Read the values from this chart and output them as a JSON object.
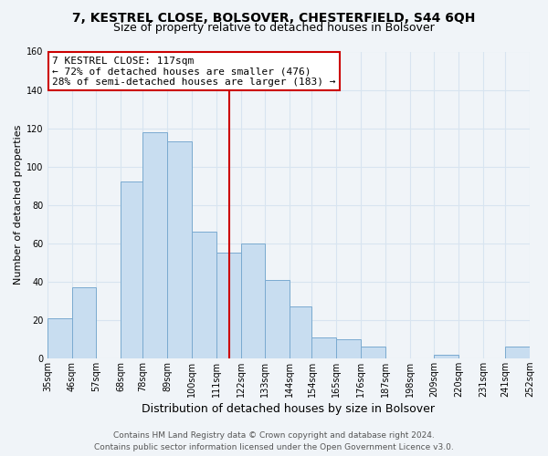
{
  "title1": "7, KESTREL CLOSE, BOLSOVER, CHESTERFIELD, S44 6QH",
  "title2": "Size of property relative to detached houses in Bolsover",
  "xlabel": "Distribution of detached houses by size in Bolsover",
  "ylabel": "Number of detached properties",
  "bar_lefts": [
    35,
    46,
    57,
    68,
    78,
    89,
    100,
    111,
    122,
    133,
    144,
    154,
    165,
    176,
    187,
    198,
    209,
    220,
    231,
    241
  ],
  "bar_rights": [
    46,
    57,
    68,
    78,
    89,
    100,
    111,
    122,
    133,
    144,
    154,
    165,
    176,
    187,
    198,
    209,
    220,
    231,
    241,
    252
  ],
  "bar_heights": [
    21,
    37,
    0,
    92,
    118,
    113,
    66,
    55,
    60,
    41,
    27,
    11,
    10,
    6,
    0,
    0,
    2,
    0,
    0,
    6
  ],
  "tick_positions": [
    35,
    46,
    57,
    68,
    78,
    89,
    100,
    111,
    122,
    133,
    144,
    154,
    165,
    176,
    187,
    198,
    209,
    220,
    231,
    241,
    252
  ],
  "tick_labels": [
    "35sqm",
    "46sqm",
    "57sqm",
    "68sqm",
    "78sqm",
    "89sqm",
    "100sqm",
    "111sqm",
    "122sqm",
    "133sqm",
    "144sqm",
    "154sqm",
    "165sqm",
    "176sqm",
    "187sqm",
    "198sqm",
    "209sqm",
    "220sqm",
    "231sqm",
    "241sqm",
    "252sqm"
  ],
  "bar_color": "#c8ddf0",
  "bar_edge_color": "#7aaad0",
  "vline_x": 117,
  "vline_color": "#cc0000",
  "annotation_line1": "7 KESTREL CLOSE: 117sqm",
  "annotation_line2": "← 72% of detached houses are smaller (476)",
  "annotation_line3": "28% of semi-detached houses are larger (183) →",
  "annotation_box_color": "#ffffff",
  "annotation_box_edge": "#cc0000",
  "ylim": [
    0,
    160
  ],
  "xlim": [
    35,
    252
  ],
  "yticks": [
    0,
    20,
    40,
    60,
    80,
    100,
    120,
    140,
    160
  ],
  "footer1": "Contains HM Land Registry data © Crown copyright and database right 2024.",
  "footer2": "Contains public sector information licensed under the Open Government Licence v3.0.",
  "bg_color": "#f0f4f8",
  "plot_bg_color": "#f0f4f8",
  "grid_color": "#d8e4f0",
  "title1_fontsize": 10,
  "title2_fontsize": 9,
  "xlabel_fontsize": 9,
  "ylabel_fontsize": 8,
  "tick_fontsize": 7,
  "footer_fontsize": 6.5,
  "annot_fontsize": 8
}
